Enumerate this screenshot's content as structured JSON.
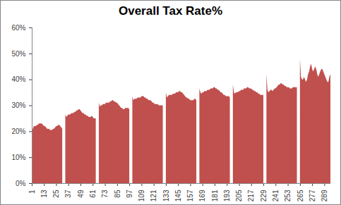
{
  "chart_data": {
    "type": "area",
    "title": "Overall Tax Rate%",
    "color": "#c0504d",
    "grid": false,
    "x": [
      1,
      2,
      3,
      4,
      5,
      6,
      7,
      8,
      9,
      10,
      11,
      12,
      13,
      14,
      15,
      16,
      17,
      18,
      19,
      20,
      21,
      22,
      23,
      24,
      25,
      26,
      27,
      28,
      29,
      30,
      31,
      32,
      33,
      34,
      35,
      36,
      37,
      38,
      39,
      40,
      41,
      42,
      43,
      44,
      45,
      46,
      47,
      48,
      49,
      50,
      51,
      52,
      53,
      54,
      55,
      56,
      57,
      58,
      59,
      60,
      61,
      62,
      63,
      64,
      65,
      66,
      67,
      68,
      69,
      70,
      71,
      72,
      73,
      74,
      75,
      76,
      77,
      78,
      79,
      80,
      81,
      82,
      83,
      84,
      85,
      86,
      87,
      88,
      89,
      90,
      91,
      92,
      93,
      94,
      95,
      96,
      97,
      98,
      99,
      100,
      101,
      102,
      103,
      104,
      105,
      106,
      107,
      108,
      109,
      110,
      111,
      112,
      113,
      114,
      115,
      116,
      117,
      118,
      119,
      120,
      121,
      122,
      123,
      124,
      125,
      126,
      127,
      128,
      129,
      130,
      131,
      132,
      133,
      134,
      135,
      136,
      137,
      138,
      139,
      140,
      141,
      142,
      143,
      144,
      145,
      146,
      147,
      148,
      149,
      150,
      151,
      152,
      153,
      154,
      155,
      156,
      157,
      158,
      159,
      160,
      161,
      162,
      163,
      164,
      165,
      166,
      167,
      168,
      169,
      170,
      171,
      172,
      173,
      174,
      175,
      176,
      177,
      178,
      179,
      180,
      181,
      182,
      183,
      184,
      185,
      186,
      187,
      188,
      189,
      190,
      191,
      192,
      193,
      194,
      195,
      196,
      197,
      198,
      199,
      200,
      201,
      202,
      203,
      204,
      205,
      206,
      207,
      208,
      209,
      210,
      211,
      212,
      213,
      214,
      215,
      216,
      217,
      218,
      219,
      220,
      221,
      222,
      223,
      224,
      225,
      226,
      227,
      228,
      229,
      230,
      231,
      232,
      233,
      234,
      235,
      236,
      237,
      238,
      239,
      240,
      241,
      242,
      243,
      244,
      245,
      246,
      247,
      248,
      249,
      250,
      251,
      252,
      253,
      254,
      255,
      256,
      257,
      258,
      259,
      260,
      261,
      262,
      263,
      264,
      265,
      266,
      267,
      268,
      269,
      270,
      271,
      272,
      273,
      274,
      275,
      276,
      277,
      278,
      279,
      280,
      281,
      282,
      283,
      284,
      285,
      286,
      287,
      288,
      289,
      290,
      291,
      292,
      293,
      294,
      295
    ],
    "values": [
      20,
      21,
      22,
      22,
      22,
      22.5,
      22.5,
      23,
      23,
      23,
      23,
      22.5,
      22,
      22,
      21.5,
      21,
      21,
      21,
      20.5,
      20.5,
      20.5,
      21,
      21,
      21.5,
      22,
      22,
      22.5,
      22.5,
      22,
      21.5,
      21,
      null,
      null,
      26.5,
      25.5,
      26,
      26.5,
      26.5,
      26.5,
      27,
      27,
      27,
      27.5,
      27.5,
      28,
      28,
      28.5,
      28.5,
      28,
      27.5,
      27,
      27,
      26.5,
      26.5,
      26,
      26,
      25.5,
      25.5,
      25.5,
      26,
      25.5,
      25,
      25,
      25,
      null,
      null,
      31,
      29.5,
      30,
      30,
      30.5,
      30.5,
      30.5,
      31,
      31,
      31,
      31,
      31.5,
      31.5,
      32,
      32,
      31.5,
      31.5,
      31,
      31,
      30.5,
      30,
      29.5,
      29,
      29,
      28.5,
      28.5,
      29,
      29,
      29,
      29,
      28.5,
      null,
      null,
      33.5,
      32,
      32.5,
      32.5,
      32.5,
      33,
      33,
      33,
      33,
      33.5,
      33.5,
      33.5,
      33,
      33,
      32.5,
      32.5,
      32,
      32,
      32,
      31.5,
      31,
      31,
      30.5,
      30.5,
      30.5,
      30.5,
      30,
      30,
      30,
      30,
      30,
      null,
      null,
      35,
      33,
      33.5,
      34,
      34,
      34,
      34,
      34.5,
      34.5,
      34.5,
      35,
      35,
      35,
      35.5,
      35.5,
      35,
      35,
      34.5,
      34,
      33.5,
      33,
      33,
      32.5,
      32.5,
      32,
      32,
      32,
      32,
      32.5,
      32.5,
      32,
      null,
      null,
      36.5,
      35,
      34.5,
      35,
      35,
      35.5,
      35.5,
      35.5,
      36,
      36,
      36,
      36.5,
      36.5,
      36.5,
      37,
      37,
      36.5,
      36.5,
      36,
      36,
      35.5,
      35,
      35,
      34.5,
      34,
      34,
      33.5,
      33.5,
      33.5,
      33.5,
      33,
      null,
      null,
      38,
      35,
      34.5,
      35,
      35,
      35,
      35.5,
      35.5,
      36,
      36,
      36,
      36.5,
      36.5,
      36.5,
      37,
      37,
      36.5,
      36.5,
      36.5,
      36,
      36,
      35.5,
      35.5,
      35,
      35,
      34.5,
      34.5,
      34,
      34,
      34,
      34,
      null,
      null,
      42,
      36,
      35,
      35.5,
      36,
      36,
      35.5,
      36,
      36.5,
      36.5,
      37,
      37.5,
      38,
      38,
      38.5,
      38.5,
      38,
      38,
      37.5,
      37.5,
      37,
      37,
      37,
      36.5,
      36.5,
      36.5,
      37,
      37,
      37,
      37,
      37,
      null,
      null,
      48,
      41,
      40,
      40,
      41,
      40,
      39,
      40,
      42,
      43,
      45,
      46,
      44,
      43,
      44,
      45,
      44,
      42,
      41,
      42,
      43,
      44,
      44,
      43,
      42,
      41,
      40,
      39,
      39,
      41,
      42
    ],
    "xlim": [
      1,
      295
    ],
    "xticks": [
      1,
      13,
      25,
      37,
      49,
      61,
      73,
      85,
      97,
      109,
      121,
      133,
      145,
      157,
      169,
      181,
      193,
      205,
      217,
      229,
      241,
      253,
      265,
      277,
      289
    ],
    "ylim": [
      0,
      60
    ],
    "yticks": [
      {
        "value": 0,
        "label": "0%"
      },
      {
        "value": 10,
        "label": "10%"
      },
      {
        "value": 20,
        "label": "20%"
      },
      {
        "value": 30,
        "label": "30%"
      },
      {
        "value": 40,
        "label": "40%"
      },
      {
        "value": 50,
        "label": "50%"
      },
      {
        "value": 60,
        "label": "60%"
      }
    ]
  }
}
